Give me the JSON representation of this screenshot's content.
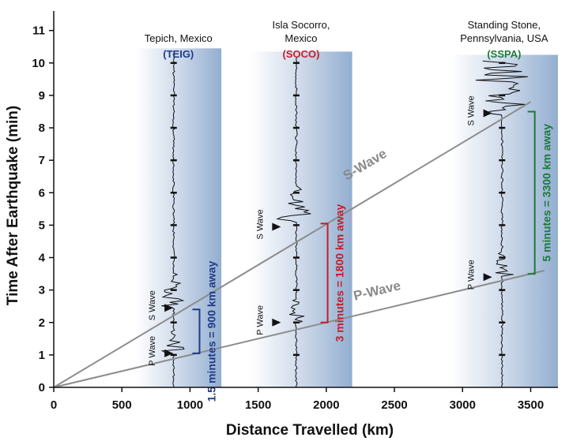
{
  "chart_data": {
    "type": "line",
    "xlabel": "Distance Travelled (km)",
    "ylabel": "Time After Earthquake (min)",
    "xlim": [
      0,
      3700
    ],
    "ylim": [
      0,
      11.6
    ],
    "x_ticks": [
      0,
      500,
      1000,
      1500,
      2000,
      2500,
      3000,
      3500
    ],
    "y_ticks": [
      0,
      1,
      2,
      3,
      4,
      5,
      6,
      7,
      8,
      9,
      10,
      11
    ],
    "grid": false,
    "series": [
      {
        "name": "S-Wave",
        "x": [
          0,
          3500
        ],
        "y": [
          0,
          8.8
        ],
        "color": "#8c8c8c"
      },
      {
        "name": "P-Wave",
        "x": [
          0,
          3600
        ],
        "y": [
          0,
          3.6
        ],
        "color": "#8c8c8c"
      }
    ],
    "stations": [
      {
        "name": "Tepich, Mexico",
        "name_lines": [
          "Tepich, Mexico"
        ],
        "code": "(TEIG)",
        "code_color": "#1f3a8a",
        "distance_km": 880,
        "band": [
          600,
          1230
        ],
        "trace_top": 10.3,
        "p_arrival": 1.15,
        "s_arrival": 2.55,
        "p_label": "P Wave",
        "s_label": "S Wave",
        "label_x": 720,
        "p_label_y": 1.05,
        "s_label_y": 2.45
      },
      {
        "name": "Isla Socorro, Mexico",
        "name_lines": [
          "Isla Socorro,",
          "Mexico"
        ],
        "code": "(SOCO)",
        "code_color": "#c41e2a",
        "distance_km": 1780,
        "band": [
          1440,
          2190
        ],
        "trace_top": 10.2,
        "p_arrival": 2.1,
        "s_arrival": 5.2,
        "p_label": "P Wave",
        "s_label": "S Wave",
        "label_x": 1510,
        "p_label_y": 2.0,
        "s_label_y": 4.95
      },
      {
        "name": "Standing Stone, Pennsylvania, USA",
        "name_lines": [
          "Standing Stone,",
          "Pennsylvania, USA"
        ],
        "code": "(SSPA)",
        "code_color": "#1f7a3a",
        "distance_km": 3290,
        "band": [
          2910,
          3700
        ],
        "trace_top": 10.1,
        "p_arrival": 3.55,
        "s_arrival": 8.6,
        "p_label": "P Wave",
        "s_label": "S Wave",
        "label_x": 3060,
        "p_label_y": 3.4,
        "s_label_y": 8.45
      }
    ],
    "brackets": [
      {
        "label": "1.5 minutes = 900 km away",
        "color": "#1f3a8a",
        "x": 1070,
        "y_start": 1.05,
        "y_end": 2.4
      },
      {
        "label": "3 minutes = 1800 km away",
        "color": "#c41e2a",
        "x": 2010,
        "y_start": 2.0,
        "y_end": 5.05
      },
      {
        "label": "5 minutes = 3300 km away",
        "color": "#1f7a3a",
        "x": 3530,
        "y_start": 3.5,
        "y_end": 8.5
      }
    ],
    "line_labels": [
      {
        "text": "S-Wave",
        "x": 2300,
        "y": 6.75,
        "angle_ref": "S-Wave"
      },
      {
        "text": "P-Wave",
        "x": 2380,
        "y": 2.85,
        "angle_ref": "P-Wave"
      }
    ]
  }
}
